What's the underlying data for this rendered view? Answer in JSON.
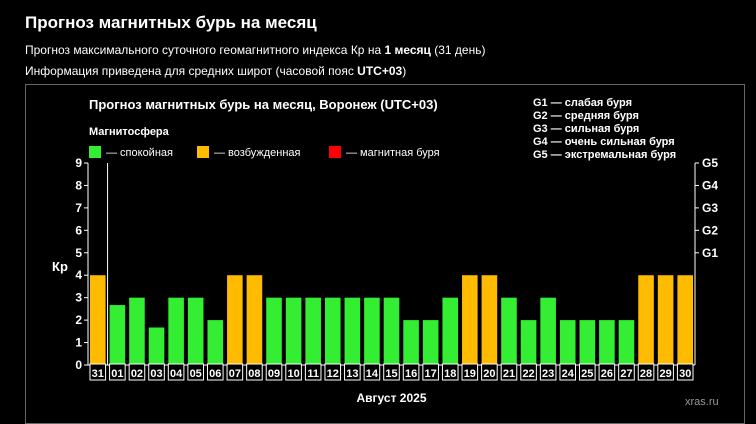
{
  "header": {
    "title": "Прогноз магнитных бурь на месяц",
    "line1_prefix": "Прогноз максимального суточного геомагнитного индекса Кр на ",
    "line1_bold": "1 месяц",
    "line1_suffix": " (31 день)",
    "line2_prefix": "Информация приведена для средних широт (часовой пояс ",
    "line2_bold": "UTC+03",
    "line2_suffix": ")"
  },
  "watermark": "xras.ru",
  "chart_data": {
    "type": "bar",
    "title": "Прогноз магнитных бурь на месяц, Воронеж (UTC+03)",
    "legend_title": "Магнитосфера",
    "legend": [
      {
        "label": "— спокойная",
        "color": "#33ee33"
      },
      {
        "label": "— возбужденная",
        "color": "#ffbb00"
      },
      {
        "label": "— магнитная буря",
        "color": "#ff0000"
      }
    ],
    "storm_scale": [
      "G1 — слабая буря",
      "G2 — средняя буря",
      "G3 — сильная буря",
      "G4 — очень сильная буря",
      "G5 — экстремальная буря"
    ],
    "ylabel": "Кр",
    "xlabel": "Август 2025",
    "ylim": [
      0,
      9
    ],
    "yticks": [
      "0",
      "1",
      "2",
      "3",
      "4",
      "5",
      "6",
      "7",
      "8",
      "9"
    ],
    "right_ticks": [
      {
        "value": 5,
        "label": "G1"
      },
      {
        "value": 6,
        "label": "G2"
      },
      {
        "value": 7,
        "label": "G3"
      },
      {
        "value": 8,
        "label": "G4"
      },
      {
        "value": 9,
        "label": "G5"
      }
    ],
    "categories": [
      "31",
      "01",
      "02",
      "03",
      "04",
      "05",
      "06",
      "07",
      "08",
      "09",
      "10",
      "11",
      "12",
      "13",
      "14",
      "15",
      "16",
      "17",
      "18",
      "19",
      "20",
      "21",
      "22",
      "23",
      "24",
      "25",
      "26",
      "27",
      "28",
      "29",
      "30"
    ],
    "values": [
      4,
      2.67,
      3,
      1.67,
      3,
      3,
      2,
      4,
      4,
      3,
      3,
      3,
      3,
      3,
      3,
      3,
      2,
      2,
      3,
      4,
      4,
      3,
      2,
      3,
      2,
      2,
      2,
      2,
      4,
      4,
      4
    ],
    "colors": {
      "calm": "#33ee33",
      "active": "#ffbb00",
      "storm": "#ff0000"
    }
  }
}
